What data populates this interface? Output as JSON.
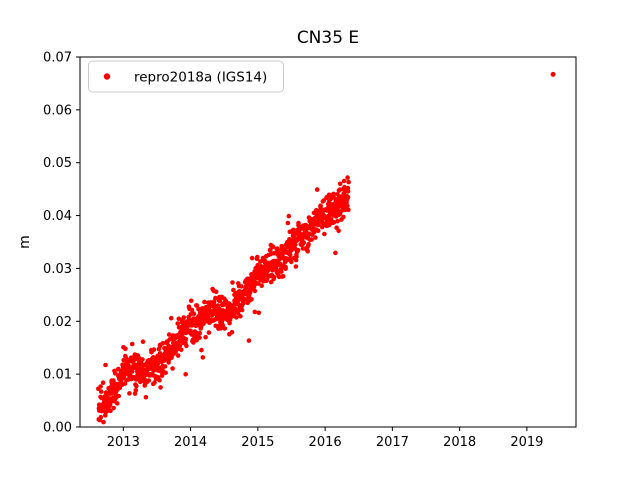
{
  "title": "CN35 E",
  "axes": {
    "ylabel": "m",
    "xlabel": "",
    "xlim": [
      2012.356,
      2019.73
    ],
    "ylim": [
      0.0,
      0.07
    ],
    "xticks": [
      2013,
      2014,
      2015,
      2016,
      2017,
      2018,
      2019
    ],
    "xtick_labels": [
      "2013",
      "2014",
      "2015",
      "2016",
      "2017",
      "2018",
      "2019"
    ],
    "yticks": [
      0.0,
      0.01,
      0.02,
      0.03,
      0.04,
      0.05,
      0.06,
      0.07
    ],
    "ytick_labels": [
      "0.00",
      "0.01",
      "0.02",
      "0.03",
      "0.04",
      "0.05",
      "0.06",
      "0.07"
    ]
  },
  "legend": {
    "label": "repro2018a (IGS14)",
    "marker_color": "#ff0000",
    "position": "upper left"
  },
  "colors": {
    "marker": "#ff0000",
    "axis": "#000000",
    "background": "#ffffff",
    "legend_border": "#cccccc"
  },
  "chart_data": {
    "type": "scatter",
    "title": "CN35 E",
    "xlabel": "",
    "ylabel": "m",
    "xlim": [
      2012.356,
      2019.73
    ],
    "ylim": [
      0.0,
      0.07
    ],
    "grid": false,
    "legend_position": "upper left",
    "series": [
      {
        "name": "repro2018a (IGS14)",
        "color": "#ff0000",
        "marker": "dot",
        "marker_radius_px": 2.3,
        "dense_cluster": {
          "description": "near-daily GNSS east-offset solutions rising roughly linearly ~0.011 m/yr from late 2012 to spring 2016",
          "x_start": 2012.63,
          "x_end": 2016.35,
          "n_points": 1150,
          "trend_anchors": [
            [
              2012.63,
              0.0035
            ],
            [
              2012.85,
              0.006
            ],
            [
              2013.05,
              0.0115
            ],
            [
              2013.3,
              0.0105
            ],
            [
              2013.6,
              0.013
            ],
            [
              2013.95,
              0.019
            ],
            [
              2014.25,
              0.0215
            ],
            [
              2014.6,
              0.022
            ],
            [
              2015.0,
              0.029
            ],
            [
              2015.3,
              0.031
            ],
            [
              2015.7,
              0.0365
            ],
            [
              2016.05,
              0.0405
            ],
            [
              2016.35,
              0.0435
            ]
          ],
          "noise_sd": 0.0016,
          "extra_scatter_prob": 0.06,
          "extra_scatter_sd": 0.003,
          "y_min_clamp": 0.0008,
          "seed": 7
        },
        "isolated_points": [
          [
            2019.39,
            0.0667
          ]
        ]
      }
    ]
  }
}
